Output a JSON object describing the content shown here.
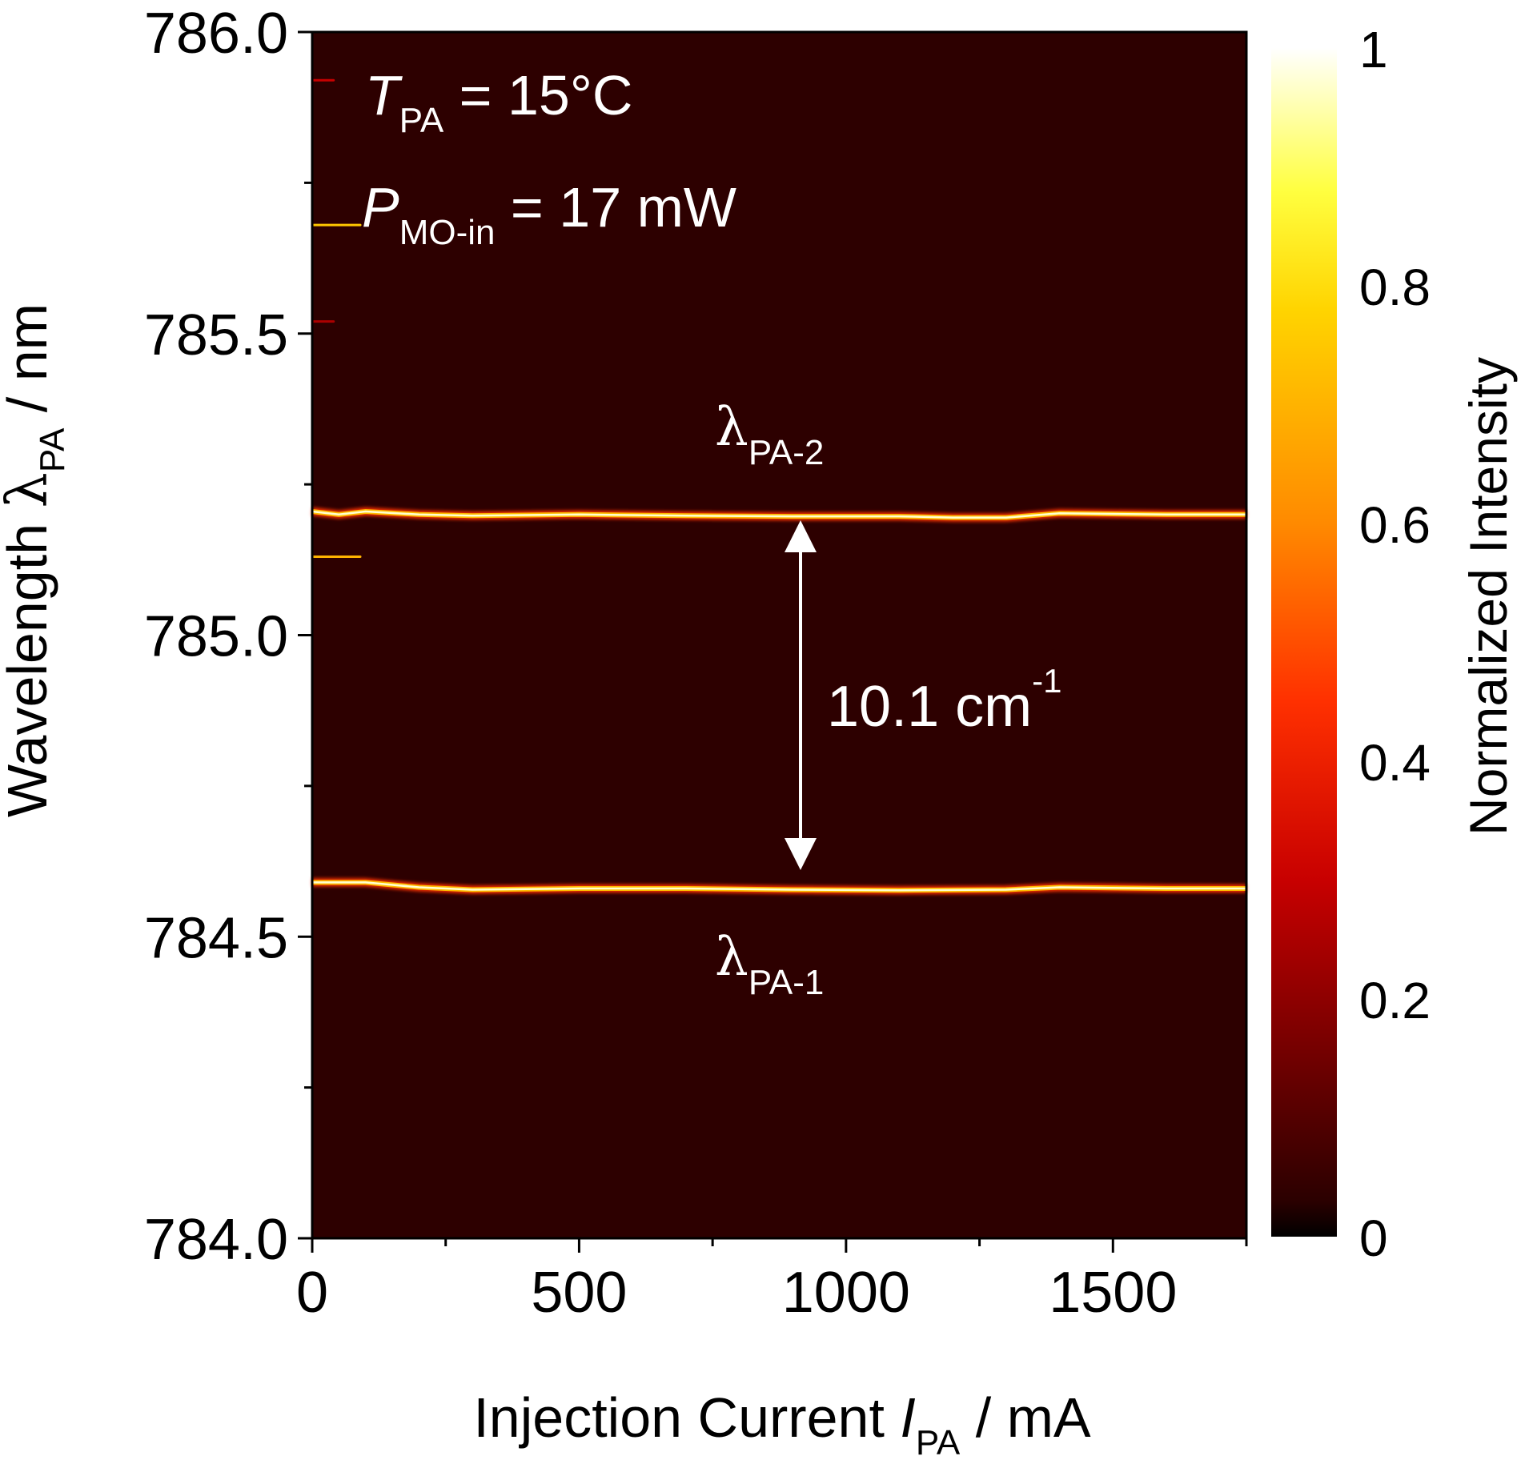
{
  "chart_data": {
    "type": "heatmap",
    "xlabel": {
      "main": "Injection Current ",
      "italic": "I",
      "sub": "PA",
      "unit": " / mA"
    },
    "ylabel": {
      "main": "Wavelength ",
      "symbol": "λ",
      "sub": "PA",
      "unit": " / nm"
    },
    "xlim": [
      0,
      1750
    ],
    "ylim": [
      784.0,
      786.0
    ],
    "x_ticks": [
      0,
      500,
      1000,
      1500
    ],
    "x_tick_labels": [
      "0",
      "500",
      "1000",
      "1500"
    ],
    "x_minor_ticks": [
      250,
      750,
      1250,
      1750
    ],
    "y_ticks": [
      784.0,
      784.5,
      785.0,
      785.5,
      786.0
    ],
    "y_tick_labels": [
      "784.0",
      "784.5",
      "785.0",
      "785.5",
      "786.0"
    ],
    "y_minor_ticks": [
      784.25,
      784.75,
      785.25,
      785.75
    ],
    "background_intensity": 0.02,
    "modes": [
      {
        "label": {
          "symbol": "λ",
          "sub": "PA-2"
        },
        "points": [
          [
            0,
            785.205
          ],
          [
            50,
            785.2
          ],
          [
            100,
            785.205
          ],
          [
            200,
            785.2
          ],
          [
            300,
            785.198
          ],
          [
            500,
            785.2
          ],
          [
            700,
            785.198
          ],
          [
            900,
            785.197
          ],
          [
            1100,
            785.197
          ],
          [
            1200,
            785.195
          ],
          [
            1300,
            785.195
          ],
          [
            1400,
            785.202
          ],
          [
            1600,
            785.2
          ],
          [
            1750,
            785.2
          ]
        ],
        "intensity": 1.0
      },
      {
        "label": {
          "symbol": "λ",
          "sub": "PA-1"
        },
        "points": [
          [
            0,
            784.59
          ],
          [
            100,
            784.59
          ],
          [
            200,
            784.582
          ],
          [
            300,
            784.578
          ],
          [
            500,
            784.58
          ],
          [
            700,
            784.58
          ],
          [
            900,
            784.578
          ],
          [
            1100,
            784.577
          ],
          [
            1300,
            784.578
          ],
          [
            1400,
            784.582
          ],
          [
            1600,
            784.58
          ],
          [
            1750,
            784.58
          ]
        ],
        "intensity": 1.0
      }
    ],
    "weak_features": [
      {
        "x_range": [
          0,
          90
        ],
        "y": 785.68,
        "intensity": 0.75
      },
      {
        "x_range": [
          0,
          90
        ],
        "y": 785.13,
        "intensity": 0.7
      },
      {
        "x_range": [
          0,
          40
        ],
        "y": 785.92,
        "intensity": 0.3
      },
      {
        "x_range": [
          0,
          40
        ],
        "y": 785.52,
        "intensity": 0.25
      }
    ],
    "annotations": {
      "conditions": [
        {
          "italic": "T",
          "sub": "PA",
          "text": " = 15°C"
        },
        {
          "italic": "P",
          "sub": "MO-in",
          "text": " = 17 mW"
        }
      ],
      "spacing": {
        "value": "10.1 cm",
        "sup": "-1"
      }
    },
    "colorbar": {
      "label": "Normalized Intensity",
      "range": [
        0,
        1
      ],
      "ticks": [
        0,
        0.2,
        0.4,
        0.6,
        0.8,
        1
      ],
      "tick_labels": [
        "0",
        "0.2",
        "0.4",
        "0.6",
        "0.8",
        "1"
      ],
      "colormap_stops": [
        {
          "v": 0.0,
          "color": "#000000"
        },
        {
          "v": 0.03,
          "color": "#2b0000"
        },
        {
          "v": 0.3,
          "color": "#c80000"
        },
        {
          "v": 0.45,
          "color": "#ff3000"
        },
        {
          "v": 0.6,
          "color": "#ff8a00"
        },
        {
          "v": 0.78,
          "color": "#ffd400"
        },
        {
          "v": 0.88,
          "color": "#ffff40"
        },
        {
          "v": 1.0,
          "color": "#ffffff"
        }
      ]
    },
    "colors": {
      "plot_background": "#2d0000",
      "arrow": "#ffffff",
      "annotation_text": "#ffffff"
    }
  }
}
